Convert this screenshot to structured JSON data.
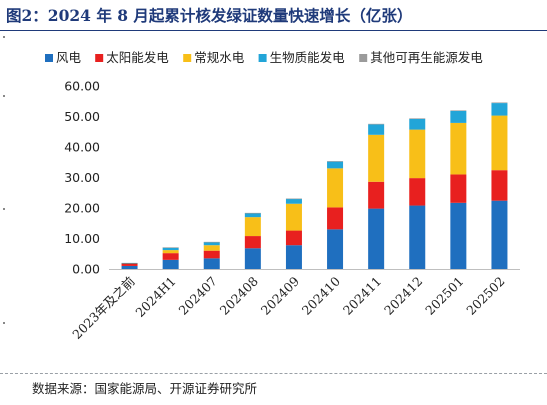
{
  "figure": {
    "title": "图2：2024 年 8 月起累计核发绿证数量快速增长（亿张）",
    "source": "数据来源：国家能源局、开源证券研究所"
  },
  "colors": {
    "title": "#1f3a7a",
    "series": [
      "#1f6fbf",
      "#e8201f",
      "#f8bf18",
      "#22a5d8",
      "#9b9b9b"
    ]
  },
  "chart_data": {
    "type": "bar",
    "stacked": true,
    "title": "图2：2024 年 8 月起累计核发绿证数量快速增长（亿张）",
    "categories": [
      "2023年及之前",
      "2024H1",
      "202407",
      "202408",
      "202409",
      "202410",
      "202411",
      "202412",
      "202501",
      "202502"
    ],
    "series": [
      {
        "name": "风电",
        "values": [
          1.0,
          3.0,
          3.5,
          6.8,
          7.8,
          13.0,
          19.8,
          20.8,
          21.7,
          22.4
        ]
      },
      {
        "name": "太阳能发电",
        "values": [
          0.9,
          2.2,
          2.5,
          4.0,
          4.8,
          7.2,
          8.8,
          9.0,
          9.3,
          10.0
        ]
      },
      {
        "name": "常规水电",
        "values": [
          0.05,
          1.0,
          1.8,
          6.2,
          8.8,
          12.8,
          15.4,
          15.9,
          16.9,
          17.9
        ]
      },
      {
        "name": "生物质能发电",
        "values": [
          0.05,
          0.8,
          1.0,
          1.3,
          1.6,
          2.2,
          3.4,
          3.5,
          3.9,
          4.1
        ]
      },
      {
        "name": "其他可再生能源发电",
        "values": [
          0.0,
          0.1,
          0.1,
          0.1,
          0.1,
          0.2,
          0.2,
          0.2,
          0.2,
          0.2
        ]
      }
    ],
    "ylim": [
      0,
      60
    ],
    "yticks": [
      "0.00",
      "10.00",
      "20.00",
      "30.00",
      "40.00",
      "50.00",
      "60.00"
    ],
    "xlabel": "",
    "ylabel": "",
    "legend_position": "top",
    "grid": false
  }
}
